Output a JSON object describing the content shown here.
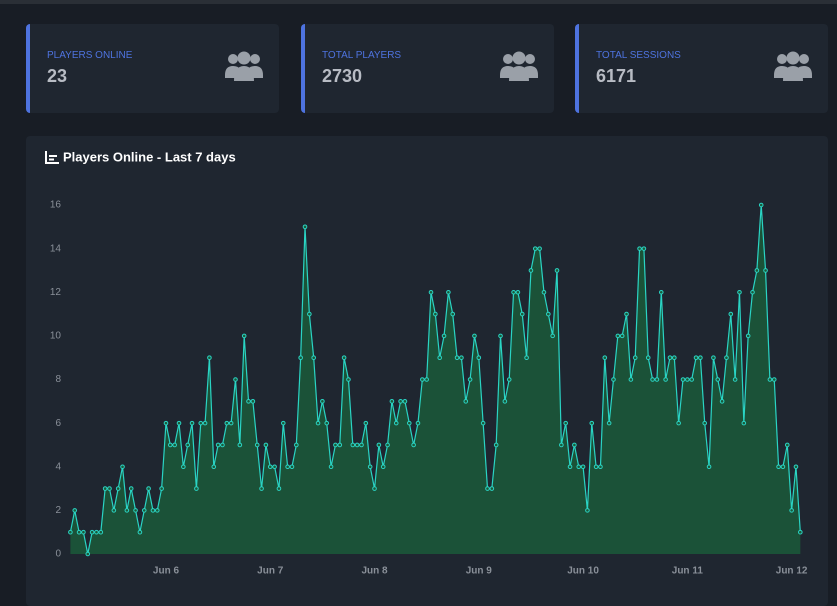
{
  "cards": [
    {
      "label": "PLAYERS ONLINE",
      "value": "23"
    },
    {
      "label": "TOTAL PLAYERS",
      "value": "2730"
    },
    {
      "label": "TOTAL SESSIONS",
      "value": "6171"
    }
  ],
  "chart_data": {
    "type": "line",
    "title": "Players Online - Last 7 days",
    "x": [
      2,
      3,
      4,
      5,
      6,
      7,
      8,
      9,
      10,
      11,
      12,
      13,
      14,
      15,
      16,
      17,
      18,
      19,
      20,
      21,
      22,
      23,
      24,
      25,
      26,
      27,
      28,
      29,
      30,
      31,
      32,
      33,
      34,
      35,
      36,
      37,
      38,
      39,
      40,
      41,
      42,
      43,
      44,
      45,
      46,
      47,
      48,
      49,
      50,
      51,
      52,
      53,
      54,
      55,
      56,
      57,
      58,
      59,
      60,
      61,
      62,
      63,
      64,
      65,
      66,
      67,
      68,
      69,
      70,
      71,
      72,
      73,
      74,
      75,
      76,
      77,
      78,
      79,
      80,
      81,
      82,
      83,
      84,
      85,
      86,
      87,
      88,
      89,
      90,
      91,
      92,
      93,
      94,
      95,
      96,
      97,
      98,
      99,
      100,
      101,
      102,
      103,
      104,
      105,
      106,
      107,
      108,
      109,
      110,
      111,
      112,
      113,
      114,
      115,
      116,
      117,
      118,
      119,
      120,
      121,
      122,
      123,
      124,
      125,
      126,
      127,
      128,
      129,
      130,
      131,
      132,
      133,
      134,
      135,
      136,
      137,
      138,
      139,
      140,
      141,
      142,
      143,
      144,
      145,
      146,
      147,
      148,
      149,
      150,
      151,
      152,
      153,
      154,
      155,
      156,
      157,
      158,
      159,
      160,
      161,
      162,
      163,
      164,
      165,
      166,
      167,
      168,
      169,
      170
    ],
    "values": [
      1,
      2,
      1,
      1,
      0,
      1,
      1,
      1,
      3,
      3,
      2,
      3,
      4,
      2,
      3,
      2,
      1,
      2,
      3,
      2,
      2,
      3,
      6,
      5,
      5,
      6,
      4,
      5,
      6,
      3,
      6,
      6,
      9,
      4,
      5,
      5,
      6,
      6,
      8,
      5,
      10,
      7,
      7,
      5,
      3,
      5,
      4,
      4,
      3,
      6,
      4,
      4,
      5,
      9,
      15,
      11,
      9,
      6,
      7,
      6,
      4,
      5,
      5,
      9,
      8,
      5,
      5,
      5,
      6,
      4,
      3,
      5,
      4,
      5,
      7,
      6,
      7,
      7,
      6,
      5,
      6,
      8,
      8,
      12,
      11,
      9,
      10,
      12,
      11,
      9,
      9,
      7,
      8,
      10,
      9,
      6,
      3,
      3,
      5,
      10,
      7,
      8,
      12,
      12,
      11,
      9,
      13,
      14,
      14,
      12,
      11,
      10,
      13,
      5,
      6,
      4,
      5,
      4,
      4,
      2,
      6,
      4,
      4,
      9,
      6,
      8,
      10,
      10,
      11,
      8,
      9,
      14,
      14,
      9,
      8,
      8,
      12,
      8,
      9,
      9,
      6,
      8,
      8,
      8,
      9,
      9,
      6,
      4,
      9,
      8,
      7,
      9,
      11,
      8,
      12,
      6,
      10,
      12,
      13,
      16,
      13,
      8,
      8,
      4,
      4,
      5,
      2,
      4,
      1
    ],
    "color": "#2ad4c4",
    "fill": "#1b5a3a",
    "xlim": [
      0,
      172
    ],
    "xticks": [
      {
        "value": 24,
        "label": "Jun 6"
      },
      {
        "value": 48,
        "label": "Jun 7"
      },
      {
        "value": 72,
        "label": "Jun 8"
      },
      {
        "value": 96,
        "label": "Jun 9"
      },
      {
        "value": 120,
        "label": "Jun 10"
      },
      {
        "value": 144,
        "label": "Jun 11"
      },
      {
        "value": 168,
        "label": "Jun 12"
      }
    ],
    "ylim": [
      0,
      16
    ],
    "yticks": [
      0,
      2,
      4,
      6,
      8,
      10,
      12,
      14,
      16
    ]
  }
}
